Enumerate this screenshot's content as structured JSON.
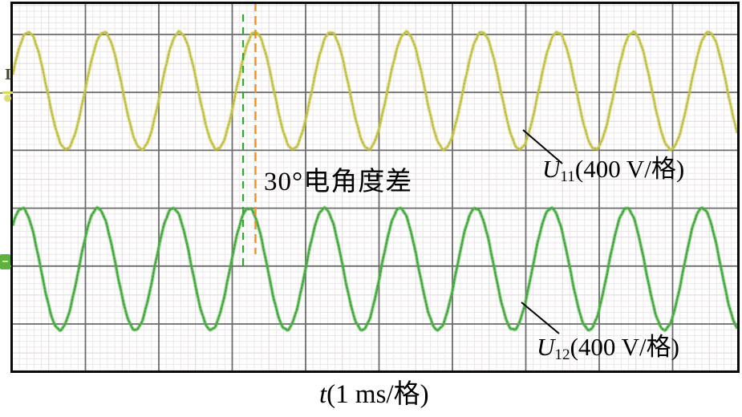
{
  "figure": {
    "kind": "oscilloscope-screenshot",
    "description": "Two sinusoidal winding voltages with 30 degree electrical angle difference"
  },
  "chart_data": {
    "type": "line",
    "title": "",
    "xlabel": "t(1 ms/格)",
    "ylabel": "",
    "x_units_per_division": "1 ms/格",
    "grid": "on",
    "visible_time_divisions": 10,
    "annotation": "30°电角度差",
    "phase_difference_deg": 30,
    "series": [
      {
        "name": "U11",
        "label": "U11(400 V/格)",
        "channel": 1,
        "waveform": "sine",
        "volts_per_division": 400,
        "amplitude_divisions": 1.01,
        "amplitude_volts_peak": 405,
        "period_divisions": 1.03,
        "period_ms": 1.03,
        "relative_phase_deg": 0,
        "color": "#c8c74b",
        "speckle_color": "#a9a836"
      },
      {
        "name": "U12",
        "label": "U12(400 V/格)",
        "channel": 2,
        "waveform": "sine",
        "volts_per_division": 400,
        "amplitude_divisions": 1.05,
        "amplitude_volts_peak": 420,
        "period_divisions": 1.03,
        "period_ms": 1.03,
        "relative_phase_deg": -30,
        "color": "#4fb148",
        "speckle_color": "#2f8f2f"
      }
    ],
    "cursors": [
      {
        "name": "u12-peak-cursor",
        "style": "vertical-dashed",
        "color": "#3aa43a",
        "marks": "U12 peak"
      },
      {
        "name": "u11-peak-cursor",
        "style": "vertical-dashed",
        "color": "#f0941f",
        "marks": "U11 peak"
      }
    ]
  },
  "labels": {
    "phase_annotation": "30°电角度差",
    "u11": {
      "symbol": "U",
      "subscript": "11",
      "rest": "(400 V/格)"
    },
    "u12": {
      "symbol": "U",
      "subscript": "12",
      "rest": "(400 V/格)"
    },
    "time": {
      "symbol": "t",
      "rest": "(1 ms/格)"
    }
  },
  "channel_markers": {
    "ch1_glyph": "I"
  },
  "colors": {
    "background": "#ffffff",
    "border": "#0a0a0a",
    "grid_major": "#6b6b6b",
    "grid_minor": "#ece6e8",
    "grid_minor_emphasis": "#ded7d9",
    "trace_u11": "#c8c74b",
    "trace_u12": "#4fb148",
    "cursor_u11": "#f0941f",
    "cursor_u12": "#3aa43a",
    "text": "#000000"
  }
}
